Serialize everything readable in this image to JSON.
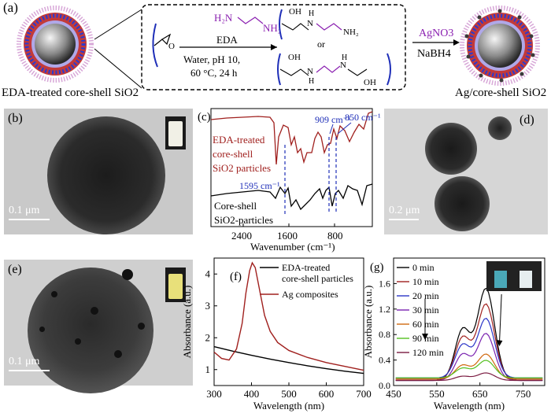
{
  "figure": {
    "panel_a": {
      "label": "(a)",
      "reagent": "EDA",
      "reagent_formula": "H2N–CH2CH2–NH2",
      "conditions_line1": "Water, pH 10,",
      "conditions_line2": "60 °C, 24 h",
      "or_text": "or",
      "step2_reagent": "AgNO3",
      "step2_reductant": "NaBH4",
      "left_caption": "EDA-treated core-shell SiO2",
      "right_caption": "Ag/core-shell SiO2"
    },
    "panel_b": {
      "label": "(b)",
      "scale": "0.1 μm"
    },
    "panel_c": {
      "label": "(c)",
      "curve_top_label": [
        "EDA-treated",
        "core-shell",
        "SiO2 particles"
      ],
      "curve_bottom_label": [
        "Core-shell",
        "SiO2-particles"
      ],
      "peak_labels": [
        "909 cm⁻¹",
        "850 cm⁻¹",
        "1595 cm⁻¹"
      ],
      "xlabel": "Wavenumber (cm⁻¹)",
      "xticks": [
        "2400",
        "1600",
        "800"
      ]
    },
    "panel_d": {
      "label": "(d)",
      "scale": "0.2 μm"
    },
    "panel_e": {
      "label": "(e)",
      "scale": "0.1 μm"
    },
    "colors": {
      "red": "#a0201e",
      "blue": "#1f2fb8",
      "purple": "#8a1fb0"
    }
  },
  "chart_data": [
    {
      "panel": "(f)",
      "type": "line",
      "xlabel": "Wavelength (nm)",
      "ylabel": "Absorbance (a.u.)",
      "xlim": [
        300,
        700
      ],
      "ylim": [
        0.5,
        4.5
      ],
      "xticks": [
        300,
        400,
        500,
        600,
        700
      ],
      "yticks": [
        1,
        2,
        3,
        4
      ],
      "series": [
        {
          "name": "EDA-treated core-shell particles",
          "color": "#000000",
          "x": [
            300,
            350,
            400,
            450,
            500,
            550,
            600,
            650,
            700
          ],
          "y": [
            1.72,
            1.58,
            1.45,
            1.33,
            1.22,
            1.12,
            1.03,
            0.95,
            0.88
          ]
        },
        {
          "name": "Ag composites",
          "color": "#a0201e",
          "x": [
            300,
            320,
            340,
            360,
            375,
            385,
            395,
            402,
            410,
            420,
            435,
            450,
            470,
            500,
            550,
            600,
            650,
            700
          ],
          "y": [
            1.55,
            1.35,
            1.3,
            1.65,
            2.45,
            3.4,
            4.1,
            4.35,
            4.2,
            3.6,
            2.7,
            2.2,
            1.85,
            1.6,
            1.38,
            1.22,
            1.1,
            0.98
          ]
        }
      ]
    },
    {
      "panel": "(g)",
      "type": "line",
      "xlabel": "Wavelength (nm)",
      "ylabel": "Absorbance (a.u.)",
      "xlim": [
        450,
        800
      ],
      "ylim": [
        0,
        2.0
      ],
      "xticks": [
        450,
        550,
        650,
        750
      ],
      "yticks": [
        0.0,
        0.4,
        0.8,
        1.2,
        1.6
      ],
      "series": [
        {
          "name": "0 min",
          "color": "#000000",
          "peak": 1.47
        },
        {
          "name": "10 min",
          "color": "#a0201e",
          "peak": 1.2
        },
        {
          "name": "20 min",
          "color": "#2b35c8",
          "peak": 0.95
        },
        {
          "name": "30 min",
          "color": "#7a22b0",
          "peak": 0.75
        },
        {
          "name": "60 min",
          "color": "#d06a10",
          "peak": 0.4
        },
        {
          "name": "90 min",
          "color": "#55c020",
          "peak": 0.28
        },
        {
          "name": "120 min",
          "color": "#7a1a40",
          "peak": 0.12
        }
      ]
    }
  ]
}
